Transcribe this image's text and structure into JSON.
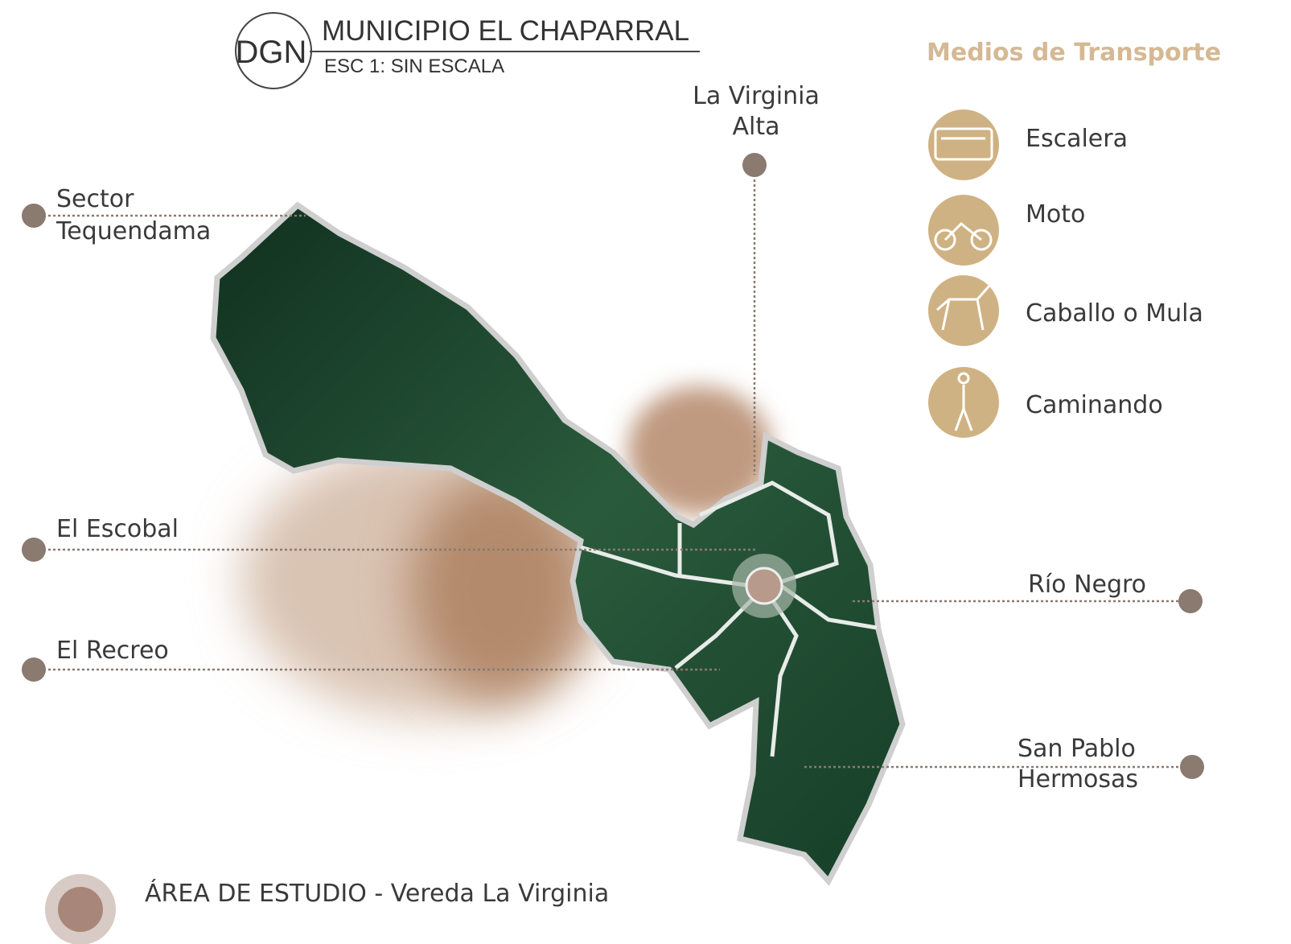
{
  "header": {
    "logo": "DGN",
    "title": "MUNICIPIO EL CHAPARRAL",
    "scale": "ESC 1: SIN ESCALA"
  },
  "transport": {
    "title": "Medios de Transporte",
    "items": [
      "Escalera",
      "Moto",
      "Caballo o Mula",
      "Caminando"
    ]
  },
  "places": [
    {
      "lines": [
        "Sector",
        "Tequendama"
      ]
    },
    {
      "lines": [
        "La Virginia",
        "Alta"
      ]
    },
    {
      "lines": [
        "El Escobal"
      ]
    },
    {
      "lines": [
        "El Recreo"
      ]
    },
    {
      "lines": [
        "Río Negro"
      ]
    },
    {
      "lines": [
        "San Pablo",
        "Hermosas"
      ]
    }
  ],
  "study_area": "ÁREA DE ESTUDIO - Vereda La Virginia"
}
